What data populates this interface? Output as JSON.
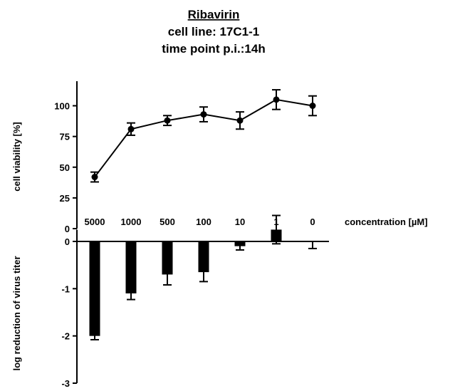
{
  "chart_data": [
    {
      "type": "line",
      "title": "Ribavirin",
      "subtitle": "cell line: 17C1-1",
      "subtitle2": "time point p.i.:14h",
      "xlabel": "concentration [µM]",
      "ylabel": "cell viability [%]",
      "categories": [
        "5000",
        "1000",
        "500",
        "100",
        "10",
        "1",
        "0"
      ],
      "values": [
        42,
        81,
        88,
        93,
        88,
        105,
        100
      ],
      "error": [
        4,
        5,
        4,
        6,
        7,
        8,
        8
      ],
      "ylim": [
        0,
        120
      ],
      "yticks": [
        0,
        25,
        50,
        75,
        100
      ]
    },
    {
      "type": "bar",
      "ylabel": "log reduction of virus titer",
      "categories": [
        "5000",
        "1000",
        "500",
        "100",
        "10",
        "1",
        "0"
      ],
      "values": [
        -2.0,
        -1.1,
        -0.7,
        -0.65,
        -0.1,
        0.25,
        0.0
      ],
      "error": [
        0.08,
        0.13,
        0.22,
        0.2,
        0.08,
        0.3,
        0.15
      ],
      "ylim": [
        -3,
        0.25
      ],
      "yticks": [
        0,
        -1,
        -2,
        -3
      ]
    }
  ]
}
